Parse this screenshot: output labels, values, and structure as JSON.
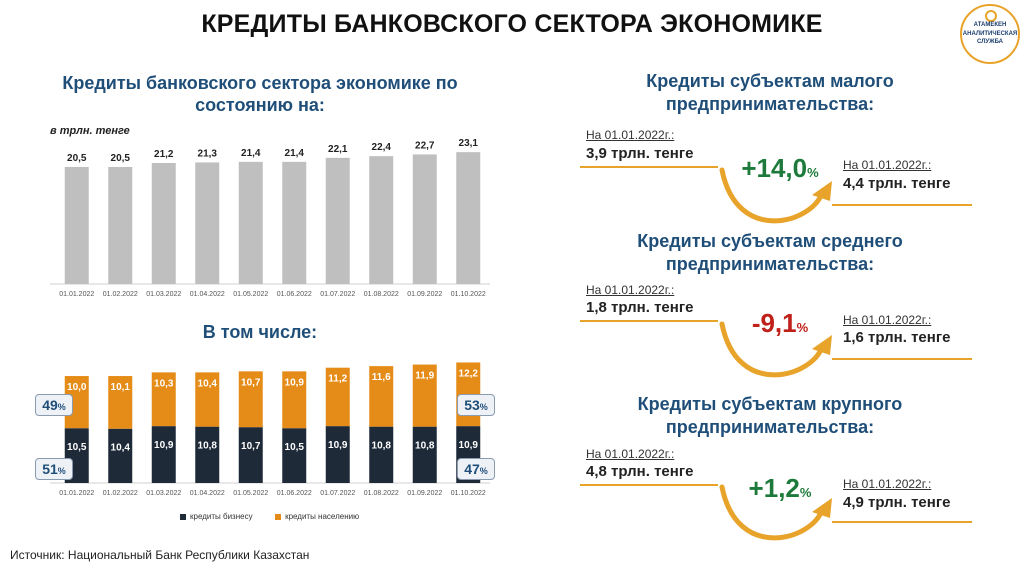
{
  "title": "КРЕДИТЫ БАНКОВСКОГО СЕКТОРА ЭКОНОМИКЕ",
  "logo": {
    "top": "АТАМЕКЕН",
    "line1": "АНАЛИТИЧЕСКАЯ",
    "line2": "СЛУЖБА"
  },
  "left": {
    "chart1_title_l1": "Кредиты банковского сектора экономике по",
    "chart1_title_l2": "состоянию на:",
    "unit": "в трлн. тенге",
    "chart2_title": "В том числе:",
    "share_top_left": "49",
    "share_bottom_left": "51",
    "share_top_right": "53",
    "share_bottom_right": "47",
    "pct_sign": "%",
    "legend_business": "кредиты бизнесу",
    "legend_population": "кредиты населению"
  },
  "chart_data": [
    {
      "type": "bar",
      "title": "Кредиты банковского сектора экономике по состоянию на:",
      "categories": [
        "01.01.2022",
        "01.02.2022",
        "01.03.2022",
        "01.04.2022",
        "01.05.2022",
        "01.06.2022",
        "01.07.2022",
        "01.08.2022",
        "01.09.2022",
        "01.10.2022"
      ],
      "values": [
        20.5,
        20.5,
        21.2,
        21.3,
        21.4,
        21.4,
        22.1,
        22.4,
        22.7,
        23.1
      ],
      "labels": [
        "20,5",
        "20,5",
        "21,2",
        "21,3",
        "21,4",
        "21,4",
        "22,1",
        "22,4",
        "22,7",
        "23,1"
      ],
      "ylabel": "в трлн. тенге",
      "color": "#bfbfbf"
    },
    {
      "type": "bar",
      "stacked": true,
      "title": "В том числе:",
      "categories": [
        "01.01.2022",
        "01.02.2022",
        "01.03.2022",
        "01.04.2022",
        "01.05.2022",
        "01.06.2022",
        "01.07.2022",
        "01.08.2022",
        "01.09.2022",
        "01.10.2022"
      ],
      "series": [
        {
          "name": "кредиты бизнесу",
          "values": [
            10.5,
            10.4,
            10.9,
            10.8,
            10.7,
            10.5,
            10.9,
            10.8,
            10.8,
            10.9
          ],
          "labels": [
            "10,5",
            "10,4",
            "10,9",
            "10,8",
            "10,7",
            "10,5",
            "10,9",
            "10,8",
            "10,8",
            "10,9"
          ],
          "color": "#1e2a38"
        },
        {
          "name": "кредиты населению",
          "values": [
            10.0,
            10.1,
            10.3,
            10.4,
            10.7,
            10.9,
            11.2,
            11.6,
            11.9,
            12.2
          ],
          "labels": [
            "10,0",
            "10,1",
            "10,3",
            "10,4",
            "10,7",
            "10,9",
            "11,2",
            "11,6",
            "11,9",
            "12,2"
          ],
          "color": "#e58b17"
        }
      ],
      "legend": "bottom"
    }
  ],
  "blocks": [
    {
      "title_l1": "Кредиты субъектам малого",
      "title_l2": "предпринимательства:",
      "from_date": "На 01.01.2022г.:",
      "from_amount": "3,9 трлн. тенге",
      "to_date": "На 01.01.2022г.:",
      "to_amount": "4,4 трлн. тенге",
      "change": "+14,0",
      "change_pct": "%",
      "change_color": "#1e7a3a"
    },
    {
      "title_l1": "Кредиты субъектам среднего",
      "title_l2": "предпринимательства:",
      "from_date": "На 01.01.2022г.:",
      "from_amount": "1,8 трлн. тенге",
      "to_date": "На 01.01.2022г.:",
      "to_amount": "1,6 трлн. тенге",
      "change": "-9,1",
      "change_pct": "%",
      "change_color": "#c0201a"
    },
    {
      "title_l1": "Кредиты субъектам крупного",
      "title_l2": "предпринимательства:",
      "from_date": "На 01.01.2022г.:",
      "from_amount": "4,8 трлн. тенге",
      "to_date": "На 01.01.2022г.:",
      "to_amount": "4,9 трлн. тенге",
      "change": "+1,2",
      "change_pct": "%",
      "change_color": "#1e7a3a"
    }
  ],
  "source": "Источник: Национальный Банк Республики Казахстан"
}
